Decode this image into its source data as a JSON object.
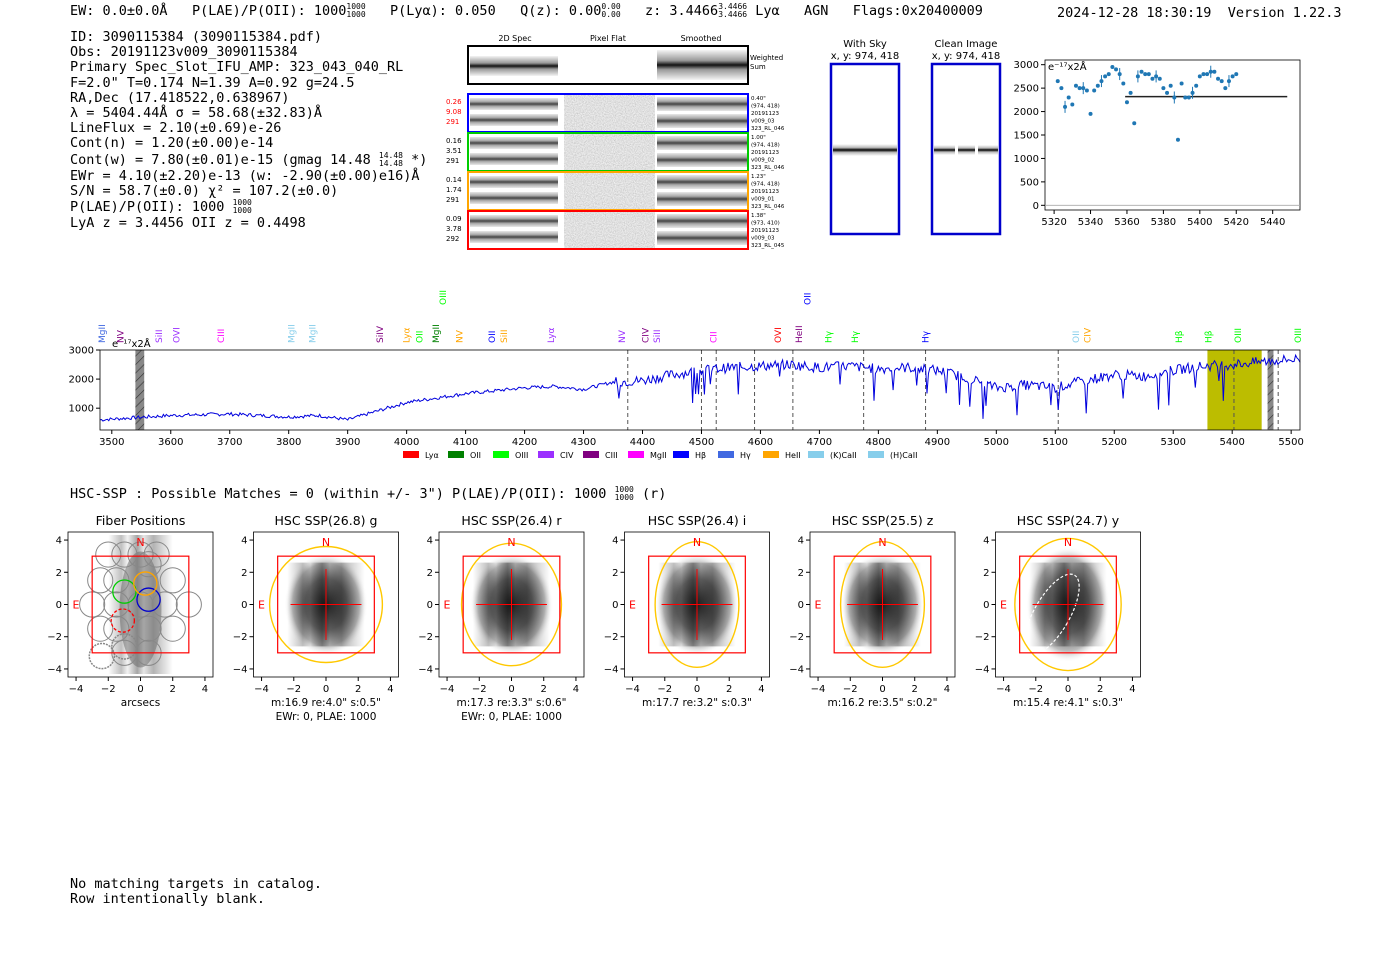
{
  "header": {
    "ew": "EW: 0.0±0.0Å",
    "plae_label": "P(LAE)/P(OII): 1000",
    "plae_hi": "1000",
    "plae_lo": "1000",
    "plya": "P(Lyα): 0.050",
    "qz_label": "Q(z): 0.00",
    "qz_hi": "0.00",
    "qz_lo": "0.00",
    "z_label": "z: 3.4466",
    "z_hi": "3.4466",
    "z_lo": "3.4466",
    "line_name": "Lyα",
    "agn": "AGN",
    "flags": "Flags:0x20400009",
    "timestamp": "2024-12-28 18:30:19",
    "version": "Version 1.22.3"
  },
  "info": {
    "id": "ID: 3090115384 (3090115384.pdf)",
    "obs": "Obs: 20191123v009_3090115384",
    "slot": "Primary Spec_Slot_IFU_AMP: 323_043_040_RL",
    "fparams": "F=2.0\"  T=0.174  N=1.39  A=0.92  g=24.5",
    "radec": "RA,Dec (17.418522,0.638967)",
    "lambda": "λ = 5404.44Å  σ = 58.68(±32.83)Å",
    "lineflux": "LineFlux = 2.10(±0.69)e-26",
    "contn": "Cont(n) = 1.20(±0.00)e-14",
    "contw": "Cont(w) = 7.80(±0.01)e-15 (gmag 14.48",
    "contw_hi": "14.48",
    "contw_lo": "14.48",
    "contw_end": "*)",
    "ewr": "EWr = 4.10(±2.20)e-13 (w: -2.90(±0.00)e16)Å",
    "sn": "S/N = 58.7(±0.0)  χ² = 107.2(±0.0)",
    "plae": "P(LAE)/P(OII): 1000",
    "plae_hi": "1000",
    "plae_lo": "1000",
    "lyaz": "LyA z = 3.4456  OII z = 0.4498"
  },
  "cutouts": {
    "col_2d": "2D Spec",
    "col_flat": "Pixel Flat",
    "col_smooth": "Smoothed",
    "weighted": "Weighted",
    "sum": "Sum",
    "rows": [
      {
        "v1": "0.26",
        "v2": "9.08",
        "v3": "291",
        "color": "#0000ff",
        "tcolor": "#ff0000",
        "n1": "0.40\"",
        "n2": "(974, 418)",
        "n3": "20191123",
        "n4": "v009_03",
        "n5": "323_RL_046"
      },
      {
        "v1": "0.16",
        "v2": "3.51",
        "v3": "291",
        "color": "#00cc00",
        "tcolor": "#000000",
        "n1": "1.00\"",
        "n2": "(974, 418)",
        "n3": "20191123",
        "n4": "v009_02",
        "n5": "323_RL_046"
      },
      {
        "v1": "0.14",
        "v2": "1.74",
        "v3": "291",
        "color": "#ffa500",
        "tcolor": "#000000",
        "n1": "1.23\"",
        "n2": "(974, 418)",
        "n3": "20191123",
        "n4": "v009_01",
        "n5": "323_RL_046"
      },
      {
        "v1": "0.09",
        "v2": "3.78",
        "v3": "292",
        "color": "#ff0000",
        "tcolor": "#000000",
        "n1": "1.38\"",
        "n2": "(973, 410)",
        "n3": "20191123",
        "n4": "v009_03",
        "n5": "323_RL_045"
      }
    ]
  },
  "sky_panels": {
    "with_sky": "With Sky",
    "clean": "Clean Image",
    "coords": "x, y: 974, 418"
  },
  "chart_data": [
    {
      "type": "scatter",
      "title": "",
      "yunit": "e⁻¹⁷x2Å",
      "xlim": [
        5315,
        5455
      ],
      "ylim": [
        -100,
        3100
      ],
      "xticks": [
        5320,
        5340,
        5360,
        5380,
        5400,
        5420,
        5440
      ],
      "yticks": [
        0,
        500,
        1000,
        1500,
        2000,
        2500,
        3000
      ],
      "x": [
        5322,
        5324,
        5326,
        5328,
        5330,
        5332,
        5334,
        5336,
        5338,
        5340,
        5342,
        5344,
        5346,
        5348,
        5350,
        5352,
        5354,
        5356,
        5358,
        5360,
        5362,
        5364,
        5366,
        5368,
        5370,
        5372,
        5374,
        5376,
        5378,
        5380,
        5382,
        5384,
        5386,
        5388,
        5390,
        5392,
        5394,
        5396,
        5398,
        5400,
        5402,
        5404,
        5406,
        5408,
        5410,
        5412,
        5414,
        5416,
        5418,
        5420
      ],
      "y": [
        2650,
        2500,
        2100,
        2300,
        2150,
        2550,
        2500,
        2500,
        2450,
        1950,
        2450,
        2550,
        2650,
        2750,
        2800,
        2950,
        2900,
        2800,
        2600,
        2200,
        2400,
        1750,
        2750,
        2850,
        2800,
        2800,
        2700,
        2750,
        2700,
        2500,
        2400,
        2550,
        2300,
        1400,
        2600,
        2300,
        2300,
        2400,
        2550,
        2750,
        2800,
        2800,
        2850,
        2850,
        2700,
        2650,
        2500,
        2650,
        2750,
        2800
      ],
      "fit_line": {
        "x0": 5359,
        "x1": 5448,
        "y": 2320
      }
    },
    {
      "type": "line",
      "title": "",
      "yunit": "e⁻¹⁷x2Å",
      "xlim": [
        3480,
        5515
      ],
      "ylim": [
        250,
        3000
      ],
      "xticks": [
        3500,
        3600,
        3700,
        3800,
        3900,
        4000,
        4100,
        4200,
        4300,
        4400,
        4500,
        4600,
        4700,
        4800,
        4900,
        5000,
        5100,
        5200,
        5300,
        5400,
        5500
      ],
      "yticks": [
        1000,
        2000,
        3000
      ],
      "anchors_x": [
        3480,
        3600,
        3700,
        3800,
        3850,
        3900,
        3950,
        4000,
        4050,
        4100,
        4150,
        4200,
        4250,
        4300,
        4350,
        4400,
        4450,
        4500,
        4550,
        4600,
        4650,
        4700,
        4750,
        4800,
        4850,
        4900,
        4950,
        5000,
        5050,
        5100,
        5150,
        5200,
        5250,
        5300,
        5350,
        5400,
        5450,
        5515
      ],
      "anchors_y": [
        600,
        750,
        800,
        700,
        750,
        600,
        900,
        1200,
        1350,
        1500,
        1600,
        1700,
        1750,
        1650,
        1900,
        1950,
        2150,
        2300,
        2400,
        2450,
        2500,
        2400,
        2450,
        2350,
        2400,
        2300,
        2050,
        1700,
        1800,
        1700,
        1950,
        2150,
        2100,
        2300,
        2450,
        2500,
        2600,
        2700
      ],
      "mask_x": [
        3540,
        3555
      ],
      "hatched_x": [
        5460,
        5470
      ],
      "highlight_x": [
        5358,
        5450
      ],
      "dashed_x": [
        4375,
        4500,
        4525,
        4590,
        4655,
        4775,
        4880,
        5105,
        5403,
        5478
      ],
      "legend": [
        {
          "name": "Lyα",
          "color": "#ff0000"
        },
        {
          "name": "OII",
          "color": "#008000"
        },
        {
          "name": "OIII",
          "color": "#00ff00"
        },
        {
          "name": "CIV",
          "color": "#9b30ff"
        },
        {
          "name": "CIII",
          "color": "#800080"
        },
        {
          "name": "MgII",
          "color": "#ff00ff"
        },
        {
          "name": "Hβ",
          "color": "#0000ff"
        },
        {
          "name": "Hγ",
          "color": "#4169e1"
        },
        {
          "name": "HeII",
          "color": "#ffa500"
        },
        {
          "name": "(K)CaII",
          "color": "#87ceeb"
        },
        {
          "name": "(H)CaII",
          "color": "#87ceeb"
        }
      ],
      "lines": [
        {
          "name": "MgII",
          "x": 3483,
          "color": "#4169e1"
        },
        {
          "name": "NV",
          "x": 3515,
          "color": "#800080"
        },
        {
          "name": "SiII",
          "x": 3580,
          "color": "#9b30ff"
        },
        {
          "name": "OVI",
          "x": 3610,
          "color": "#9b30ff"
        },
        {
          "name": "CIII",
          "x": 3685,
          "color": "#ff00ff"
        },
        {
          "name": "MgII",
          "x": 3805,
          "color": "#87ceeb"
        },
        {
          "name": "MgII",
          "x": 3840,
          "color": "#87ceeb"
        },
        {
          "name": "SiIV",
          "x": 3955,
          "color": "#800080"
        },
        {
          "name": "Lyα",
          "x": 4000,
          "color": "#ffa500"
        },
        {
          "name": "OII",
          "x": 4022,
          "color": "#00ff00"
        },
        {
          "name": "MgII",
          "x": 4050,
          "color": "#008000"
        },
        {
          "name": "NV",
          "x": 4090,
          "color": "#ffa500"
        },
        {
          "name": "OII",
          "x": 4145,
          "color": "#0000ff"
        },
        {
          "name": "SiII",
          "x": 4165,
          "color": "#ffa500"
        },
        {
          "name": "Lyα",
          "x": 4245,
          "color": "#9b30ff"
        },
        {
          "name": "NV",
          "x": 4365,
          "color": "#9b30ff"
        },
        {
          "name": "CIV",
          "x": 4405,
          "color": "#800080"
        },
        {
          "name": "SiII",
          "x": 4425,
          "color": "#9b30ff"
        },
        {
          "name": "CII",
          "x": 4520,
          "color": "#ff00ff"
        },
        {
          "name": "OVI",
          "x": 4630,
          "color": "#ff0000"
        },
        {
          "name": "HeII",
          "x": 4665,
          "color": "#800080"
        },
        {
          "name": "Hγ",
          "x": 4715,
          "color": "#00ff00"
        },
        {
          "name": "Hγ",
          "x": 4760,
          "color": "#00ff00"
        },
        {
          "name": "Hγ",
          "x": 4880,
          "color": "#0000ff"
        },
        {
          "name": "OII",
          "x": 5135,
          "color": "#87ceeb"
        },
        {
          "name": "CIV",
          "x": 5155,
          "color": "#ffa500"
        },
        {
          "name": "Hβ",
          "x": 5310,
          "color": "#00ff00"
        },
        {
          "name": "Hβ",
          "x": 5360,
          "color": "#00ff00"
        },
        {
          "name": "OIII",
          "x": 5410,
          "color": "#00ff00"
        },
        {
          "name": "OIII",
          "x": 5512,
          "color": "#00ff00"
        }
      ],
      "upper_lines": [
        {
          "name": "OIII",
          "x": 4062,
          "color": "#00ff00"
        },
        {
          "name": "OII",
          "x": 4680,
          "color": "#0000ff"
        }
      ]
    }
  ],
  "hsc": {
    "title": "HSC-SSP : Possible Matches = 0 (within +/- 3\")  P(LAE)/P(OII): 1000",
    "plae_hi": "1000",
    "plae_lo": "1000",
    "title_end": "(r)",
    "panels": [
      {
        "title": "Fiber Positions",
        "caption1": "arcsecs",
        "caption2": ""
      },
      {
        "title": "HSC SSP(26.8) g",
        "caption1": "m:16.9  re:4.0\"  s:0.5\"",
        "caption2": "EWr: 0, PLAE: 1000"
      },
      {
        "title": "HSC SSP(26.4) r",
        "caption1": "m:17.3  re:3.3\"  s:0.6\"",
        "caption2": "EWr: 0, PLAE: 1000"
      },
      {
        "title": "HSC SSP(26.4) i",
        "caption1": "m:17.7  re:3.2\"  s:0.3\"",
        "caption2": ""
      },
      {
        "title": "HSC SSP(25.5) z",
        "caption1": "m:16.2  re:3.5\"  s:0.2\"",
        "caption2": ""
      },
      {
        "title": "HSC SSP(24.7) y",
        "caption1": "m:15.4  re:4.1\"  s:0.3\"",
        "caption2": ""
      }
    ],
    "north": "N",
    "east": "E",
    "ticks": [
      "−4",
      "−2",
      "0",
      "2",
      "4"
    ]
  },
  "footer": {
    "line1": "No matching targets in catalog.",
    "line2": "Row intentionally blank."
  }
}
